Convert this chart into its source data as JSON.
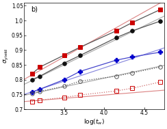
{
  "title": "b)",
  "xlabel": "log(t_w)",
  "ylabel": "σ_yield",
  "xlim": [
    3.0,
    4.75
  ],
  "ylim": [
    0.7,
    1.06
  ],
  "yticks": [
    0.7,
    0.75,
    0.8,
    0.85,
    0.9,
    0.95,
    1.0,
    1.05
  ],
  "xticks": [
    3.5,
    4.0,
    4.5
  ],
  "series": [
    {
      "name": "red_filled",
      "x": [
        3.1,
        3.2,
        3.5,
        3.7,
        4.15,
        4.35,
        4.7
      ],
      "y": [
        0.82,
        0.843,
        0.883,
        0.91,
        0.965,
        0.993,
        1.037
      ],
      "color": "#cc0000",
      "marker": "s",
      "filled": true,
      "linestyle": "-",
      "linecolor": "#555555"
    },
    {
      "name": "black_filled",
      "x": [
        3.1,
        3.2,
        3.5,
        3.7,
        4.15,
        4.35,
        4.7
      ],
      "y": [
        0.8,
        0.812,
        0.856,
        0.882,
        0.942,
        0.965,
        0.998
      ],
      "color": "#111111",
      "marker": "o",
      "filled": true,
      "linestyle": "-",
      "linecolor": "#555555"
    },
    {
      "name": "blue_filled",
      "x": [
        3.1,
        3.2,
        3.5,
        3.7,
        4.15,
        4.35,
        4.7
      ],
      "y": [
        0.758,
        0.768,
        0.8,
        0.828,
        0.866,
        0.877,
        0.893
      ],
      "color": "#0000cc",
      "marker": "P",
      "filled": true,
      "linestyle": "-",
      "linecolor": "#4444cc"
    },
    {
      "name": "black_open",
      "x": [
        3.1,
        3.2,
        3.5,
        3.7,
        4.15,
        4.35,
        4.7
      ],
      "y": [
        0.754,
        0.76,
        0.778,
        0.795,
        0.812,
        0.823,
        0.843
      ],
      "color": "#555555",
      "marker": "o",
      "filled": false,
      "linestyle": ":",
      "linecolor": "#555555"
    },
    {
      "name": "red_open",
      "x": [
        3.1,
        3.2,
        3.5,
        3.7,
        4.15,
        4.35,
        4.7
      ],
      "y": [
        0.726,
        0.731,
        0.74,
        0.748,
        0.762,
        0.771,
        0.792
      ],
      "color": "#cc0000",
      "marker": "s",
      "filled": false,
      "linestyle": ":",
      "linecolor": "#cc6666"
    }
  ],
  "fit_lines": [
    {
      "slope": 0.152,
      "intercept": 0.345,
      "color": "#dd8888",
      "linestyle": "-"
    },
    {
      "slope": 0.132,
      "intercept": 0.388,
      "color": "#aaaaaa",
      "linestyle": "-"
    },
    {
      "slope": 0.09,
      "intercept": 0.48,
      "color": "#8888dd",
      "linestyle": "-"
    },
    {
      "slope": 0.058,
      "intercept": 0.573,
      "color": "#aaaaaa",
      "linestyle": "-"
    },
    {
      "slope": 0.022,
      "intercept": 0.66,
      "color": "#dd8888",
      "linestyle": "-"
    }
  ],
  "figsize": [
    2.44,
    1.89
  ],
  "dpi": 100
}
